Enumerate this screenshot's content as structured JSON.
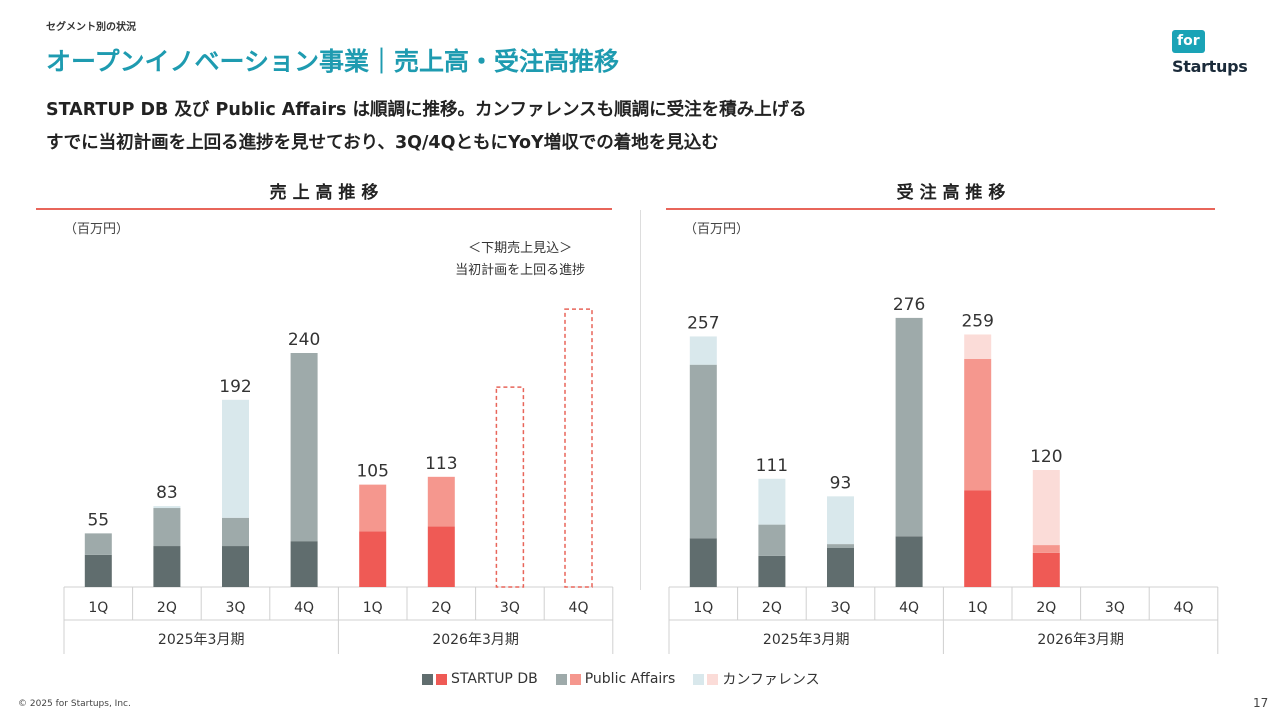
{
  "header": {
    "section_label": "セグメント別の状況",
    "title": "オープンイノベーション事業｜売上高・受注高推移",
    "subtitle_line1": "STARTUP DB 及び Public Affairs は順調に推移。カンファレンスも順調に受注を積み上げる",
    "subtitle_line2": "すでに当初計画を上回る進捗を見せており、3Q/4QともにYoY増収での着地を見込む"
  },
  "logo": {
    "line1": "for",
    "line2": "Startups"
  },
  "colors": {
    "accent_teal": "#1e9bb0",
    "rule_red": "#e8655a",
    "startup_db_past": "#606d6e",
    "public_affairs_past": "#9eaaaa",
    "conference_past": "#d9e8ec",
    "startup_db_current": "#ef5a55",
    "public_affairs_current": "#f5978e",
    "conference_current": "#fbdcd8",
    "forecast_dash": "#e8655a"
  },
  "chart_data": [
    {
      "type": "bar",
      "stacked": true,
      "title": "売 上 高 推 移",
      "unit_label": "（百万円）",
      "categories": [
        "1Q",
        "2Q",
        "3Q",
        "4Q",
        "1Q",
        "2Q",
        "3Q",
        "4Q"
      ],
      "period_groups": [
        {
          "label": "2025年3月期",
          "span": 4
        },
        {
          "label": "2026年3月期",
          "span": 4
        }
      ],
      "series": [
        {
          "name": "STARTUP DB",
          "values": [
            33,
            42,
            42,
            47,
            57,
            62,
            null,
            null
          ]
        },
        {
          "name": "Public Affairs",
          "values": [
            22,
            39,
            29,
            193,
            48,
            51,
            null,
            null
          ]
        },
        {
          "name": "カンファレンス",
          "values": [
            0,
            2,
            121,
            0,
            0,
            0,
            null,
            null
          ]
        }
      ],
      "totals": [
        55,
        83,
        192,
        240,
        105,
        113,
        null,
        null
      ],
      "forecast": {
        "values": [
          null,
          null,
          null,
          null,
          null,
          null,
          205,
          285
        ],
        "note_line1": "＜下期売上見込＞",
        "note_line2": "当初計画を上回る進捗"
      },
      "ylim": [
        0,
        300
      ]
    },
    {
      "type": "bar",
      "stacked": true,
      "title": "受 注 高 推 移",
      "unit_label": "（百万円）",
      "categories": [
        "1Q",
        "2Q",
        "3Q",
        "4Q",
        "1Q",
        "2Q",
        "3Q",
        "4Q"
      ],
      "period_groups": [
        {
          "label": "2025年3月期",
          "span": 4
        },
        {
          "label": "2026年3月期",
          "span": 4
        }
      ],
      "series": [
        {
          "name": "STARTUP DB",
          "values": [
            50,
            32,
            40,
            52,
            99,
            35,
            null,
            null
          ]
        },
        {
          "name": "Public Affairs",
          "values": [
            178,
            32,
            4,
            224,
            135,
            8,
            null,
            null
          ]
        },
        {
          "name": "カンファレンス",
          "values": [
            29,
            47,
            49,
            0,
            25,
            77,
            null,
            null
          ]
        }
      ],
      "totals": [
        257,
        111,
        93,
        276,
        259,
        120,
        null,
        null
      ],
      "ylim": [
        0,
        300
      ]
    }
  ],
  "legend": {
    "items": [
      "STARTUP DB",
      "Public Affairs",
      "カンファレンス"
    ]
  },
  "footer": {
    "copyright": "© 2025 for Startups, Inc.",
    "page_number": "17"
  }
}
